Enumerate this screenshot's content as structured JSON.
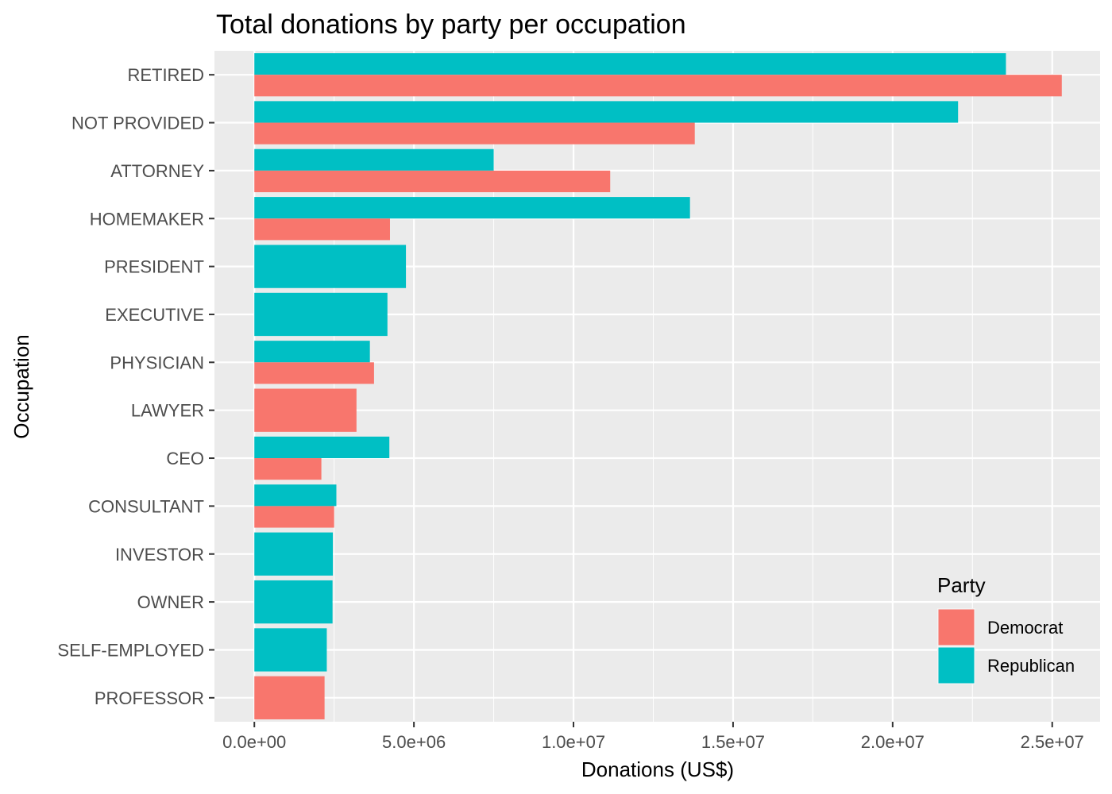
{
  "chart_data": {
    "type": "bar",
    "orientation": "horizontal",
    "title": "Total donations by party per occupation",
    "xlabel": "Donations (US$)",
    "ylabel": "Occupation",
    "xlim": [
      -1250000,
      26500000
    ],
    "x_ticks": [
      0,
      5000000,
      10000000,
      15000000,
      20000000,
      25000000
    ],
    "x_tick_labels": [
      "0.0e+00",
      "5.0e+06",
      "1.0e+07",
      "1.5e+07",
      "2.0e+07",
      "2.5e+07"
    ],
    "grid": true,
    "legend_position": "bottom-right inside",
    "categories": [
      "RETIRED",
      "NOT PROVIDED",
      "ATTORNEY",
      "HOMEMAKER",
      "PRESIDENT",
      "EXECUTIVE",
      "PHYSICIAN",
      "LAWYER",
      "CEO",
      "CONSULTANT",
      "INVESTOR",
      "OWNER",
      "SELF-EMPLOYED",
      "PROFESSOR"
    ],
    "series": [
      {
        "name": "Democrat",
        "color": "#F8766D",
        "values": [
          25300000,
          13800000,
          11150000,
          4250000,
          null,
          null,
          3750000,
          3200000,
          2100000,
          2500000,
          null,
          null,
          null,
          2200000
        ]
      },
      {
        "name": "Republican",
        "color": "#00BFC4",
        "values": [
          23550000,
          22050000,
          7500000,
          13650000,
          4750000,
          4170000,
          3620000,
          null,
          4230000,
          2570000,
          2460000,
          2450000,
          2270000,
          null
        ]
      }
    ],
    "legend_title": "Party"
  }
}
